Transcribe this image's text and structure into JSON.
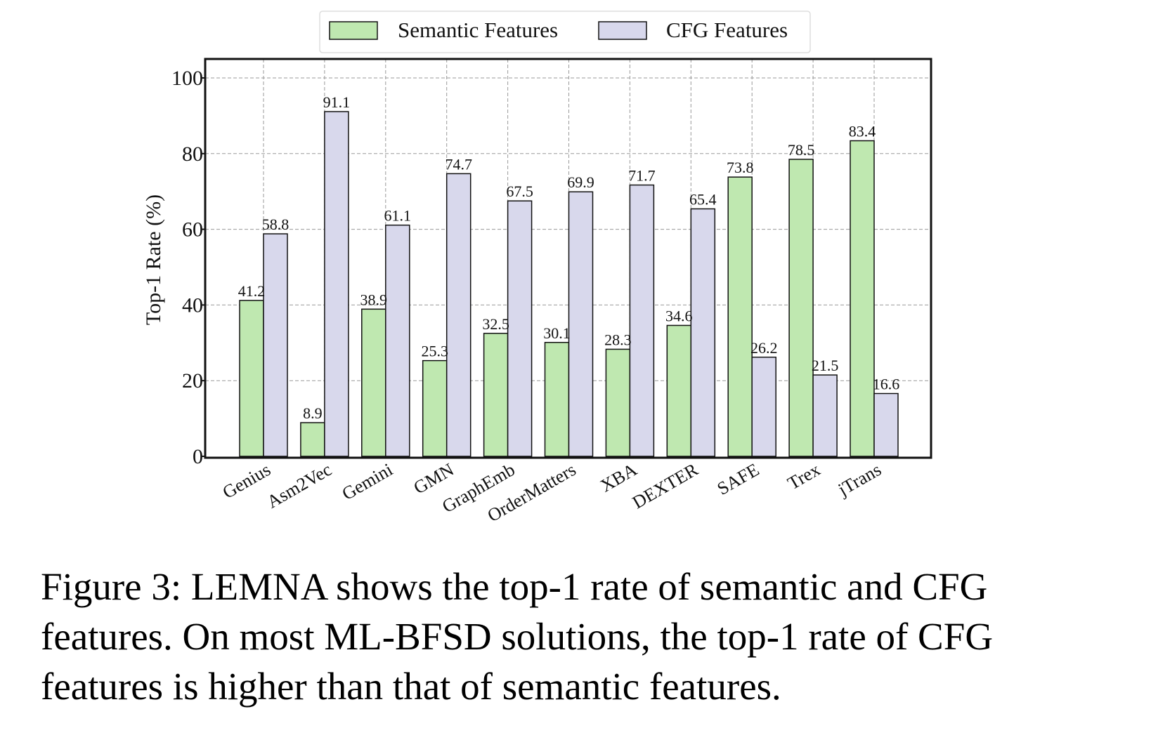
{
  "chart_data": {
    "type": "bar",
    "title": "",
    "xlabel": "",
    "ylabel": "Top-1 Rate (%)",
    "ylim": [
      0,
      100
    ],
    "yticks": [
      0,
      20,
      40,
      60,
      80,
      100
    ],
    "grid": true,
    "legend_position": "top-center",
    "categories": [
      "Genius",
      "Asm2Vec",
      "Gemini",
      "GMN",
      "GraphEmb",
      "OrderMatters",
      "XBA",
      "DEXTER",
      "SAFE",
      "Trex",
      "jTrans"
    ],
    "series": [
      {
        "name": "Semantic Features",
        "color": "#bfe8b0",
        "values": [
          41.2,
          8.9,
          38.9,
          25.3,
          32.5,
          30.1,
          28.3,
          34.6,
          73.8,
          78.5,
          83.4
        ],
        "labels": [
          "41.2",
          "8.9",
          "38.9",
          "25.3",
          "32.5",
          "30.1",
          "28.3",
          "34.6",
          "73.8",
          "78.5",
          "83.4"
        ]
      },
      {
        "name": "CFG Features",
        "color": "#d8d8ec",
        "values": [
          58.8,
          91.1,
          61.1,
          74.7,
          67.5,
          69.9,
          71.7,
          65.4,
          26.2,
          21.5,
          16.6
        ],
        "labels": [
          "58.8",
          "91.1",
          "61.1",
          "74.7",
          "67.5",
          "69.9",
          "71.7",
          "65.4",
          "26.2",
          "21.5",
          "16.6"
        ]
      }
    ]
  },
  "caption": "Figure 3: LEMNA shows the top-1 rate of semantic and CFG features. On most ML-BFSD solutions, the top-1 rate of CFG features is higher than that of semantic features."
}
